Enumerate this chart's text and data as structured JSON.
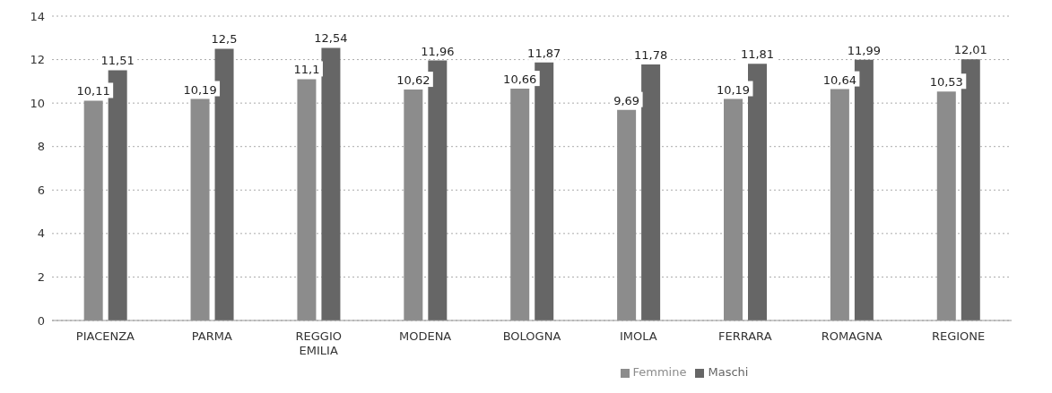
{
  "chart_data": {
    "type": "bar",
    "categories": [
      "PIACENZA",
      "PARMA",
      "REGGIO EMILIA",
      "MODENA",
      "BOLOGNA",
      "IMOLA",
      "FERRARA",
      "ROMAGNA",
      "REGIONE"
    ],
    "series": [
      {
        "name": "Femmine",
        "color": "#8c8c8c",
        "values": [
          10.11,
          10.19,
          11.1,
          10.62,
          10.66,
          9.69,
          10.19,
          10.64,
          10.53
        ],
        "value_labels": [
          "10,11",
          "10,19",
          "11,1",
          "10,62",
          "10,66",
          "9,69",
          "10,19",
          "10,64",
          "10,53"
        ]
      },
      {
        "name": "Maschi",
        "color": "#666666",
        "values": [
          11.51,
          12.5,
          12.54,
          11.96,
          11.87,
          11.78,
          11.81,
          11.99,
          12.01
        ],
        "value_labels": [
          "11,51",
          "12,5",
          "12,54",
          "11,96",
          "11,87",
          "11,78",
          "11,81",
          "11,99",
          "12,01"
        ]
      }
    ],
    "ylim": [
      0,
      14
    ],
    "yticks": [
      0,
      2,
      4,
      6,
      8,
      10,
      12,
      14
    ],
    "grid": "y",
    "legend": "bottom"
  }
}
